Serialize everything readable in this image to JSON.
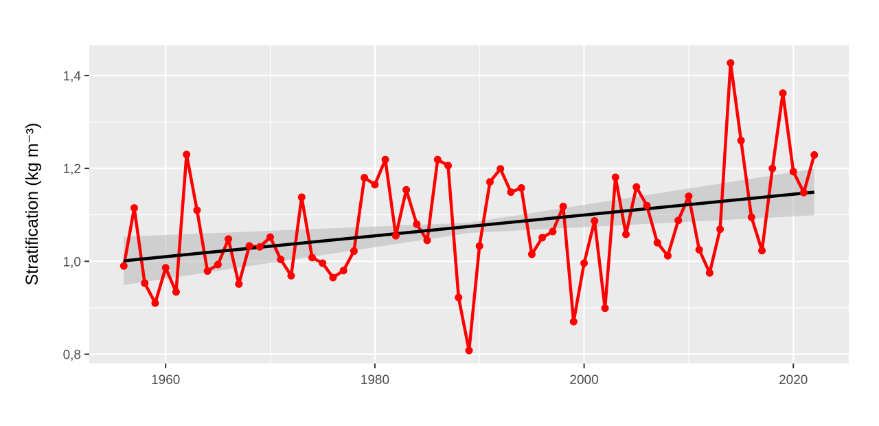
{
  "chart_data": {
    "type": "line",
    "xlabel": "",
    "ylabel": "Stratification (kg m⁻³)",
    "xlim": [
      1952.7,
      2025.3
    ],
    "ylim": [
      0.78,
      1.465
    ],
    "x_ticks": [
      1960,
      1980,
      2000,
      2020
    ],
    "x_tick_labels": [
      "1960",
      "1980",
      "2000",
      "2020"
    ],
    "y_ticks": [
      0.8,
      1.0,
      1.2,
      1.4
    ],
    "y_tick_labels": [
      "0,8",
      "1,0",
      "1,2",
      "1,4"
    ],
    "grid": true,
    "legend": "none",
    "colors": {
      "panel_background": "#ebebeb",
      "grid_major": "#ffffff",
      "series": "#ff0000",
      "trend": "#000000",
      "ribbon": "#bebebe",
      "tick_text": "#4d4d4d"
    },
    "series": [
      {
        "x": [
          1956,
          1957,
          1958,
          1959,
          1960,
          1961,
          1962,
          1963,
          1964,
          1965,
          1966,
          1967,
          1968,
          1969,
          1970,
          1971,
          1972,
          1973,
          1974,
          1975,
          1976,
          1977,
          1978,
          1979,
          1980,
          1981,
          1982,
          1983,
          1984,
          1985,
          1986,
          1987,
          1988,
          1989,
          1990,
          1991,
          1992,
          1993,
          1994,
          1995,
          1996,
          1997,
          1998,
          1999,
          2000,
          2001,
          2002,
          2003,
          2004,
          2005,
          2006,
          2007,
          2008,
          2009,
          2010,
          2011,
          2012,
          2013,
          2014,
          2015,
          2016,
          2017,
          2018,
          2019,
          2020,
          2021,
          2022
        ],
        "values": [
          0.99,
          1.115,
          0.953,
          0.91,
          0.986,
          0.934,
          1.23,
          1.11,
          0.979,
          0.993,
          1.048,
          0.951,
          1.033,
          1.031,
          1.052,
          1.004,
          0.969,
          1.138,
          1.008,
          0.996,
          0.965,
          0.98,
          1.022,
          1.18,
          1.165,
          1.219,
          1.055,
          1.154,
          1.08,
          1.045,
          1.219,
          1.206,
          0.922,
          0.808,
          1.033,
          1.171,
          1.199,
          1.149,
          1.158,
          1.015,
          1.051,
          1.064,
          1.118,
          0.87,
          0.996,
          1.087,
          0.899,
          1.181,
          1.058,
          1.16,
          1.12,
          1.04,
          1.012,
          1.088,
          1.14,
          1.025,
          0.975,
          1.069,
          1.427,
          1.26,
          1.095,
          1.023,
          1.2,
          1.362,
          1.193,
          1.148,
          1.229
        ]
      }
    ],
    "trend_line": {
      "x": [
        1956,
        2022
      ],
      "y": [
        1.001,
        1.149
      ]
    },
    "confidence_band": {
      "x": [
        1956,
        1989,
        2022
      ],
      "upper": [
        1.053,
        1.083,
        1.199
      ],
      "lower": [
        0.949,
        1.061,
        1.099
      ]
    }
  }
}
